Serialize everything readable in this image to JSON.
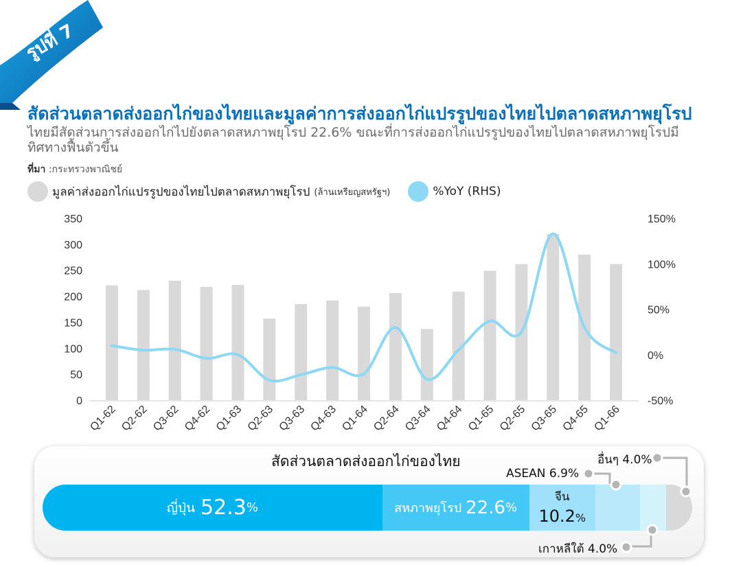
{
  "badge": "รูปที่ 7",
  "title": "สัดส่วนตลาดส่งออกไก่ของไทยและมูลค่าการส่งออกไก่แปรรูปของไทยไปตลาดสหภาพยุโรป",
  "subtitle": "ไทยมีสัดส่วนการส่งออกไก่ไปยังตลาดสหภาพยุโรป 22.6% ขณะที่การส่งออกไก่แปรรูปของไทยไปตลาดสหภาพยุโรปมีทิศทางฟื้นตัวขึ้น",
  "source_label": "ที่มา",
  "source_text": " :กระทรวงพาณิชย์",
  "legend": {
    "bar_label": "มูลค่าส่งออกไก่แปรรูปของไทยไปตลาดสหภาพยุโรป",
    "bar_unit": "(ล้านเหรียญสหรัฐฯ)",
    "line_label": "%YoY (RHS)"
  },
  "colors": {
    "bar": "#d9d9d9",
    "line": "#8dd8f5",
    "title": "#0a6fb6",
    "japan": "#00b4f0",
    "eu": "#45c8f5",
    "china": "#9fe0fa",
    "asean": "#b9e9fb",
    "korea": "#d3f3fb",
    "others": "#d9d9d9"
  },
  "chart_data": {
    "type": "bar",
    "categories": [
      "Q1-62",
      "Q2-62",
      "Q3-62",
      "Q4-62",
      "Q1-63",
      "Q2-63",
      "Q3-63",
      "Q4-63",
      "Q1-64",
      "Q2-64",
      "Q3-64",
      "Q4-64",
      "Q1-65",
      "Q2-65",
      "Q3-65",
      "Q4-65",
      "Q1-66"
    ],
    "series": [
      {
        "type": "bar",
        "axis": "left",
        "values": [
          221,
          212,
          230,
          218,
          222,
          157,
          185,
          192,
          180,
          206,
          137,
          209,
          249,
          262,
          320,
          280,
          262
        ]
      },
      {
        "type": "line",
        "axis": "right",
        "values": [
          10,
          5,
          6,
          -4,
          0,
          -28,
          -22,
          -14,
          -21,
          30,
          -27,
          5,
          37,
          25,
          133,
          30,
          2
        ]
      }
    ],
    "ylim_left": [
      0,
      350
    ],
    "yticks_left": [
      "0",
      "50",
      "100",
      "150",
      "200",
      "250",
      "300",
      "350"
    ],
    "ylim_right": [
      -50,
      150
    ],
    "yticks_right": [
      "-50%",
      "0%",
      "50%",
      "100%",
      "150%"
    ],
    "grid": false
  },
  "share": {
    "title": "สัดส่วนตลาดส่งออกไก่ของไทย",
    "japan": {
      "label": "ญี่ปุ่น",
      "value": "52.3",
      "pct": "%",
      "share": 52.3
    },
    "eu": {
      "label": "สหภาพยุโรป",
      "value": "22.6",
      "pct": "%",
      "share": 22.6
    },
    "china": {
      "label": "จีน",
      "value": "10.2",
      "pct": "%",
      "share": 10.2
    },
    "asean": {
      "label": "ASEAN 6.9%",
      "share": 6.9
    },
    "korea": {
      "label": "เกาหลีใต้ 4.0%",
      "share": 4.0
    },
    "others": {
      "label": "อื่นๆ 4.0%",
      "share": 4.0
    }
  }
}
